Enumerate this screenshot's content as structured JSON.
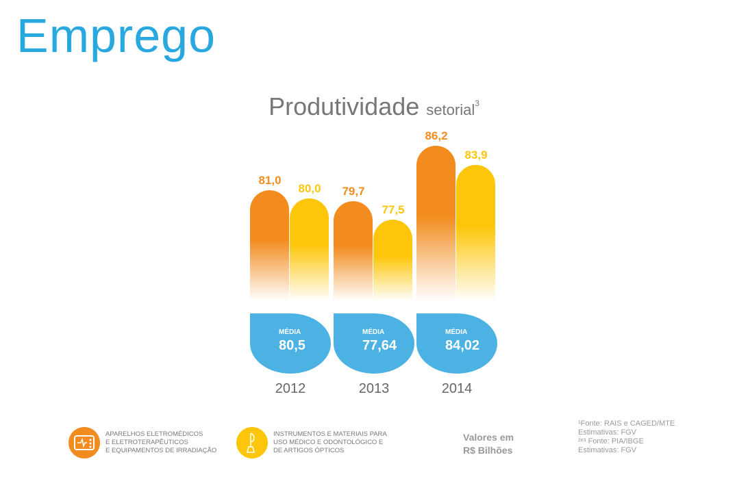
{
  "header": {
    "title": "Emprego"
  },
  "chart_data": {
    "type": "bar",
    "title": "Produtividade",
    "subtitle": "setorial",
    "title_sup": "3",
    "categories": [
      "2012",
      "2013",
      "2014"
    ],
    "series": [
      {
        "name": "Aparelhos eletromédicos",
        "color": "#f28c1f",
        "values": [
          81.0,
          79.7,
          86.2
        ],
        "labels": [
          "81,0",
          "79,7",
          "86,2"
        ]
      },
      {
        "name": "Instrumentos e materiais",
        "color": "#fdc60a",
        "values": [
          80.0,
          77.5,
          83.9
        ],
        "labels": [
          "80,0",
          "77,5",
          "83,9"
        ]
      }
    ],
    "media_label": "MÉDIA",
    "media": [
      "80,5",
      "77,64",
      "84,02"
    ],
    "units": "R$ Bilhões"
  },
  "legend": [
    {
      "icon": "monitor-icon",
      "lines": [
        "APARELHOS ELETROMÉDICOS",
        "E ELETROTERAPÊUTICOS",
        "E EQUIPAMENTOS DE IRRADIAÇÃO"
      ]
    },
    {
      "icon": "instrument-icon",
      "lines": [
        "INSTRUMENTOS E MATERIAIS PARA",
        "USO MÉDICO E ODONTOLÓGICO E",
        "DE ARTIGOS ÓPTICOS"
      ]
    }
  ],
  "valores": [
    "Valores em",
    "R$ Bilhões"
  ],
  "fonte": [
    "¹Fonte: RAIS e CAGED/MTE",
    "Estimativas: FGV",
    "²ᵉ³ Fonte: PIA/IBGE",
    "Estimativas: FGV"
  ]
}
